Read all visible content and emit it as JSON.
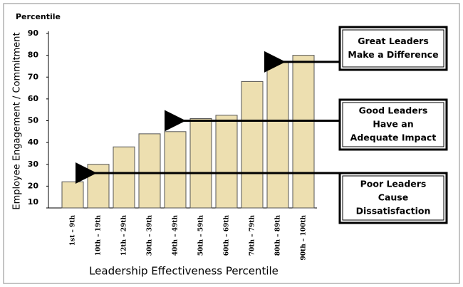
{
  "chart_data": {
    "type": "bar",
    "y_title": "Percentile",
    "y_label": "Employee Engagement / Commitment",
    "x_label": "Leadership Effectiveness Percentile",
    "categories": [
      "1st – 9th",
      "10th – 19th",
      "12th – 29th",
      "30th – 39th",
      "40th – 49th",
      "50th – 59th",
      "60th – 69th",
      "70th – 79th",
      "80th – 89th",
      "90th – 100th"
    ],
    "values": [
      22,
      30,
      38,
      44,
      45,
      51,
      52.5,
      68,
      77,
      80
    ],
    "color": "#eddfb0",
    "ylim": [
      10,
      90
    ],
    "yticks": [
      10,
      20,
      30,
      40,
      50,
      60,
      70,
      80,
      90
    ],
    "annotations": [
      {
        "lines": [
          "Great Leaders",
          "Make a Difference"
        ],
        "value": 77
      },
      {
        "lines": [
          "Good Leaders",
          "Have an",
          "Adequate Impact"
        ],
        "value": 50
      },
      {
        "lines": [
          "Poor Leaders",
          "Cause",
          "Dissatisfaction"
        ],
        "value": 26
      }
    ]
  }
}
